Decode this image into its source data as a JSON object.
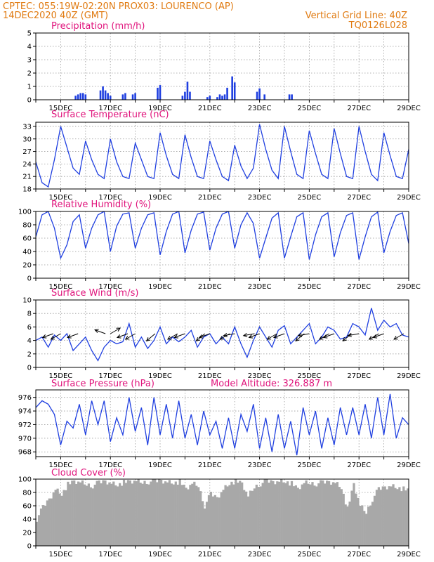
{
  "header": {
    "line1_left": "CPTEC:   055:19W-02:20N   PROX03: LOURENCO (AP)",
    "line2_left": "14DEC2020 40Z (GMT)",
    "line2_right": "Vertical Grid Line: 40Z",
    "line3_right": "TQ0126L028"
  },
  "colors": {
    "header": "#e07a10",
    "titles": "#e0147c",
    "series": "#1f3fe0",
    "wind": "#000000",
    "cloud": "#a8a8a8"
  },
  "x_axis": {
    "start_day": 14,
    "end_day": 29,
    "tick_labels": [
      "15DEC",
      "17DEC",
      "19DEC",
      "21DEC",
      "23DEC",
      "25DEC",
      "27DEC",
      "29DEC"
    ]
  },
  "chart_data": [
    {
      "type": "bar",
      "title": "Precipitation (mm/h)",
      "ylim": [
        0,
        5
      ],
      "yticks": [
        "0",
        "1",
        "2",
        "3",
        "4",
        "5"
      ],
      "x": [
        15.6,
        15.7,
        15.8,
        15.9,
        16.0,
        16.6,
        16.7,
        16.8,
        16.9,
        17.0,
        17.5,
        17.6,
        17.9,
        18.0,
        18.9,
        19.0,
        19.9,
        20.0,
        20.1,
        20.2,
        20.9,
        21.0,
        21.3,
        21.4,
        21.5,
        21.6,
        21.7,
        21.9,
        22.0,
        22.9,
        23.0,
        23.2,
        24.2,
        24.3
      ],
      "values": [
        0.3,
        0.4,
        0.5,
        0.5,
        0.4,
        0.7,
        1.0,
        0.7,
        0.5,
        0.3,
        0.4,
        0.5,
        0.4,
        0.5,
        0.9,
        1.1,
        0.3,
        0.6,
        1.35,
        0.6,
        0.2,
        0.3,
        0.2,
        0.4,
        0.3,
        0.4,
        0.9,
        1.75,
        1.3,
        0.6,
        0.85,
        0.4,
        0.4,
        0.4
      ]
    },
    {
      "type": "line",
      "title": "Surface Temperature (nC)",
      "ylim": [
        18,
        34
      ],
      "yticks": [
        "18",
        "21",
        "24",
        "27",
        "30",
        "33"
      ],
      "x": [
        14.0,
        14.25,
        14.5,
        14.75,
        15.0,
        15.25,
        15.5,
        15.75,
        16.0,
        16.25,
        16.5,
        16.75,
        17.0,
        17.25,
        17.5,
        17.75,
        18.0,
        18.25,
        18.5,
        18.75,
        19.0,
        19.25,
        19.5,
        19.75,
        20.0,
        20.25,
        20.5,
        20.75,
        21.0,
        21.25,
        21.5,
        21.75,
        22.0,
        22.25,
        22.5,
        22.75,
        23.0,
        23.25,
        23.5,
        23.75,
        24.0,
        24.25,
        24.5,
        24.75,
        25.0,
        25.25,
        25.5,
        25.75,
        26.0,
        26.25,
        26.5,
        26.75,
        27.0,
        27.25,
        27.5,
        27.75,
        28.0,
        28.25,
        28.5,
        28.75,
        29.0
      ],
      "series": [
        {
          "values": [
            24.5,
            19.5,
            18.5,
            25.0,
            33.0,
            28.0,
            23.0,
            21.5,
            29.5,
            25.0,
            21.5,
            20.5,
            30.0,
            24.5,
            21.0,
            20.5,
            29.0,
            25.0,
            21.0,
            20.5,
            31.5,
            26.0,
            21.5,
            20.5,
            31.0,
            25.5,
            21.0,
            20.5,
            29.5,
            25.0,
            21.0,
            20.0,
            28.5,
            23.5,
            20.5,
            23.0,
            33.5,
            27.5,
            22.5,
            20.5,
            33.0,
            27.0,
            21.5,
            20.5,
            32.0,
            26.5,
            21.5,
            20.5,
            32.5,
            26.5,
            21.0,
            20.5,
            33.0,
            27.0,
            21.5,
            20.0,
            31.5,
            26.0,
            21.0,
            20.5,
            27.5
          ]
        }
      ]
    },
    {
      "type": "line",
      "title": "Relative Humidity (%)",
      "ylim": [
        0,
        100
      ],
      "yticks": [
        "0",
        "20",
        "40",
        "60",
        "80",
        "100"
      ],
      "x": [
        14.0,
        14.25,
        14.5,
        14.75,
        15.0,
        15.25,
        15.5,
        15.75,
        16.0,
        16.25,
        16.5,
        16.75,
        17.0,
        17.25,
        17.5,
        17.75,
        18.0,
        18.25,
        18.5,
        18.75,
        19.0,
        19.25,
        19.5,
        19.75,
        20.0,
        20.25,
        20.5,
        20.75,
        21.0,
        21.25,
        21.5,
        21.75,
        22.0,
        22.25,
        22.5,
        22.75,
        23.0,
        23.25,
        23.5,
        23.75,
        24.0,
        24.25,
        24.5,
        24.75,
        25.0,
        25.25,
        25.5,
        25.75,
        26.0,
        26.25,
        26.5,
        26.75,
        27.0,
        27.25,
        27.5,
        27.75,
        28.0,
        28.25,
        28.5,
        28.75,
        29.0
      ],
      "series": [
        {
          "values": [
            62,
            95,
            100,
            75,
            30,
            50,
            85,
            95,
            45,
            75,
            95,
            100,
            40,
            78,
            96,
            98,
            45,
            75,
            95,
            98,
            35,
            70,
            96,
            100,
            38,
            72,
            96,
            99,
            42,
            75,
            96,
            100,
            45,
            80,
            98,
            82,
            30,
            60,
            90,
            98,
            30,
            62,
            92,
            98,
            28,
            65,
            92,
            98,
            32,
            68,
            94,
            98,
            28,
            62,
            92,
            99,
            38,
            70,
            94,
            98,
            52
          ]
        }
      ]
    },
    {
      "type": "line",
      "title": "Surface Wind (m/s)",
      "ylim": [
        0,
        10
      ],
      "yticks": [
        "0",
        "2",
        "4",
        "6",
        "8",
        "10"
      ],
      "x": [
        14.0,
        14.25,
        14.5,
        14.75,
        15.0,
        15.25,
        15.5,
        15.75,
        16.0,
        16.25,
        16.5,
        16.75,
        17.0,
        17.25,
        17.5,
        17.75,
        18.0,
        18.25,
        18.5,
        18.75,
        19.0,
        19.25,
        19.5,
        19.75,
        20.0,
        20.25,
        20.5,
        20.75,
        21.0,
        21.25,
        21.5,
        21.75,
        22.0,
        22.25,
        22.5,
        22.75,
        23.0,
        23.25,
        23.5,
        23.75,
        24.0,
        24.25,
        24.5,
        24.75,
        25.0,
        25.25,
        25.5,
        25.75,
        26.0,
        26.25,
        26.5,
        26.75,
        27.0,
        27.25,
        27.5,
        27.75,
        28.0,
        28.25,
        28.5,
        28.75,
        29.0
      ],
      "series": [
        {
          "values": [
            4.0,
            4.5,
            3.0,
            4.8,
            4.0,
            5.0,
            2.5,
            3.5,
            4.5,
            2.5,
            1.0,
            3.0,
            4.0,
            3.5,
            3.8,
            6.5,
            3.0,
            4.5,
            2.8,
            4.0,
            6.0,
            3.5,
            4.5,
            3.8,
            4.5,
            5.5,
            3.0,
            4.5,
            5.0,
            3.5,
            4.5,
            3.5,
            6.0,
            3.5,
            1.5,
            4.0,
            6.0,
            4.5,
            3.0,
            5.5,
            6.2,
            3.5,
            4.5,
            5.5,
            6.5,
            3.5,
            4.5,
            6.0,
            5.5,
            4.2,
            4.5,
            6.5,
            6.0,
            4.8,
            8.8,
            5.5,
            7.0,
            6.0,
            6.5,
            4.8,
            4.5
          ]
        }
      ],
      "arrow_x": [
        14.7,
        15.0,
        15.7,
        16.8,
        17.0,
        17.7,
        18.0,
        18.8,
        19.7,
        20.0,
        20.8,
        21.0,
        21.8,
        22.0,
        22.8,
        23.0,
        23.7,
        24.0,
        24.8,
        25.0,
        25.8,
        26.0,
        26.7,
        27.0,
        27.8,
        28.0,
        28.8
      ],
      "arrow_dir": [
        200,
        210,
        200,
        160,
        30,
        200,
        210,
        220,
        210,
        200,
        220,
        200,
        210,
        190,
        190,
        200,
        210,
        200,
        220,
        190,
        210,
        200,
        220,
        190,
        210,
        200,
        210
      ]
    },
    {
      "type": "line",
      "title": "Surface Pressure (hPa)",
      "annotation": "Model Altitude: 326.887  m",
      "ylim": [
        967.3,
        977.1
      ],
      "yticks": [
        "968",
        "970",
        "972",
        "974",
        "976"
      ],
      "x": [
        14.0,
        14.25,
        14.5,
        14.75,
        15.0,
        15.25,
        15.5,
        15.75,
        16.0,
        16.25,
        16.5,
        16.75,
        17.0,
        17.25,
        17.5,
        17.75,
        18.0,
        18.25,
        18.5,
        18.75,
        19.0,
        19.25,
        19.5,
        19.75,
        20.0,
        20.25,
        20.5,
        20.75,
        21.0,
        21.25,
        21.5,
        21.75,
        22.0,
        22.25,
        22.5,
        22.75,
        23.0,
        23.25,
        23.5,
        23.75,
        24.0,
        24.25,
        24.5,
        24.75,
        25.0,
        25.25,
        25.5,
        25.75,
        26.0,
        26.25,
        26.5,
        26.75,
        27.0,
        27.25,
        27.5,
        27.75,
        28.0,
        28.25,
        28.5,
        28.75,
        29.0
      ],
      "series": [
        {
          "values": [
            974.5,
            975.5,
            975.0,
            973.5,
            969.0,
            972.5,
            971.5,
            975.0,
            970.5,
            975.5,
            972.0,
            975.5,
            969.5,
            973.0,
            970.5,
            976.0,
            971.0,
            974.5,
            969.0,
            976.0,
            970.5,
            975.0,
            970.0,
            975.5,
            970.0,
            973.5,
            969.0,
            974.0,
            970.5,
            972.5,
            968.5,
            973.0,
            968.5,
            973.5,
            971.0,
            975.0,
            968.5,
            973.0,
            968.0,
            973.5,
            968.5,
            972.5,
            967.5,
            974.5,
            970.5,
            974.0,
            968.5,
            973.0,
            969.0,
            974.5,
            970.5,
            974.5,
            970.5,
            975.0,
            970.0,
            976.0,
            970.5,
            976.5,
            970.0,
            973.0,
            972.0
          ]
        }
      ]
    },
    {
      "type": "area",
      "title": "Cloud Cover (%)",
      "ylim": [
        0,
        100
      ],
      "yticks": [
        "0",
        "20",
        "40",
        "60",
        "80",
        "100"
      ],
      "x": [
        14.0,
        14.25,
        14.5,
        14.75,
        15.0,
        15.25,
        15.5,
        15.75,
        16.0,
        16.25,
        16.5,
        16.75,
        17.0,
        17.25,
        17.5,
        17.75,
        18.0,
        18.25,
        18.5,
        18.75,
        19.0,
        19.25,
        19.5,
        19.75,
        20.0,
        20.25,
        20.5,
        20.75,
        21.0,
        21.25,
        21.5,
        21.75,
        22.0,
        22.25,
        22.5,
        22.75,
        23.0,
        23.25,
        23.5,
        23.75,
        24.0,
        24.25,
        24.5,
        24.75,
        25.0,
        25.25,
        25.5,
        25.75,
        26.0,
        26.25,
        26.5,
        26.75,
        27.0,
        27.25,
        27.5,
        27.75,
        28.0,
        28.25,
        28.5,
        28.75,
        29.0
      ],
      "series": [
        {
          "values": [
            40,
            58,
            70,
            85,
            78,
            92,
            96,
            95,
            92,
            90,
            95,
            97,
            94,
            92,
            95,
            96,
            97,
            95,
            96,
            97,
            98,
            96,
            95,
            96,
            85,
            93,
            90,
            60,
            78,
            72,
            85,
            94,
            97,
            93,
            74,
            88,
            93,
            97,
            96,
            97,
            97,
            93,
            85,
            94,
            94,
            93,
            95,
            96,
            95,
            88,
            55,
            92,
            60,
            50,
            70,
            85,
            88,
            90,
            88,
            85,
            82
          ]
        }
      ]
    }
  ]
}
